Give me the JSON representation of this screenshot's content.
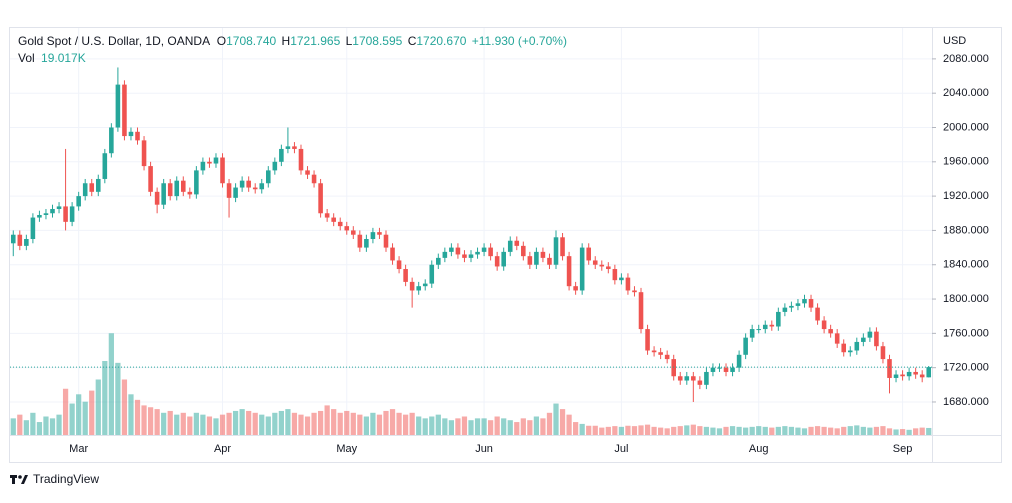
{
  "header": {
    "symbol": "Gold Spot / U.S. Dollar, 1D, OANDA",
    "ohlc": [
      {
        "label": "O",
        "value": "1708.740"
      },
      {
        "label": "H",
        "value": "1721.965"
      },
      {
        "label": "L",
        "value": "1708.595"
      },
      {
        "label": "C",
        "value": "1720.670"
      }
    ],
    "change": "+11.930 (+0.70%)",
    "volume_label": "Vol",
    "volume_value": "19.017K"
  },
  "chart_data": {
    "type": "candlestick",
    "currency": "USD",
    "categories": [
      null,
      null,
      null,
      null,
      null,
      null,
      null,
      null,
      null,
      null,
      "Mar",
      null,
      null,
      null,
      null,
      null,
      null,
      null,
      null,
      null,
      null,
      null,
      null,
      null,
      null,
      null,
      null,
      null,
      null,
      null,
      null,
      null,
      "Apr",
      null,
      null,
      null,
      null,
      null,
      null,
      null,
      null,
      null,
      null,
      null,
      null,
      null,
      null,
      null,
      null,
      null,
      null,
      "May",
      null,
      null,
      null,
      null,
      null,
      null,
      null,
      null,
      null,
      null,
      null,
      null,
      null,
      null,
      null,
      null,
      null,
      null,
      null,
      null,
      "Jun",
      null,
      null,
      null,
      null,
      null,
      null,
      null,
      null,
      null,
      null,
      null,
      null,
      null,
      null,
      null,
      null,
      null,
      null,
      null,
      null,
      "Jul",
      null,
      null,
      null,
      null,
      null,
      null,
      null,
      null,
      null,
      null,
      null,
      null,
      null,
      null,
      null,
      null,
      null,
      null,
      null,
      null,
      "Aug",
      null,
      null,
      null,
      null,
      null,
      null,
      null,
      null,
      null,
      null,
      null,
      null,
      null,
      null,
      null,
      null,
      null,
      null,
      null,
      null,
      null,
      "Sep",
      null,
      null,
      null,
      null
    ],
    "open": [
      1865,
      1875,
      1862,
      1870,
      1895,
      1898,
      1900,
      1905,
      1908,
      1890,
      1908,
      1920,
      1935,
      1925,
      1940,
      1970,
      2000,
      2050,
      1990,
      1995,
      1985,
      1955,
      1925,
      1910,
      1935,
      1920,
      1938,
      1925,
      1922,
      1950,
      1960,
      1958,
      1965,
      1935,
      1918,
      1930,
      1938,
      1930,
      1928,
      1935,
      1950,
      1960,
      1975,
      1978,
      1975,
      1950,
      1945,
      1935,
      1900,
      1895,
      1890,
      1885,
      1880,
      1875,
      1860,
      1870,
      1878,
      1875,
      1860,
      1845,
      1835,
      1820,
      1810,
      1815,
      1818,
      1840,
      1848,
      1855,
      1860,
      1852,
      1848,
      1852,
      1855,
      1860,
      1850,
      1838,
      1855,
      1868,
      1862,
      1850,
      1840,
      1855,
      1848,
      1840,
      1872,
      1850,
      1815,
      1810,
      1860,
      1845,
      1840,
      1838,
      1835,
      1822,
      1825,
      1810,
      1808,
      1765,
      1740,
      1738,
      1735,
      1730,
      1710,
      1705,
      1710,
      1705,
      1700,
      1715,
      1720,
      1720,
      1715,
      1720,
      1735,
      1755,
      1765,
      1765,
      1770,
      1768,
      1785,
      1790,
      1792,
      1795,
      1800,
      1790,
      1775,
      1765,
      1760,
      1748,
      1738,
      1740,
      1750,
      1755,
      1762,
      1745,
      1730,
      1708,
      1712,
      1710,
      1715,
      1712,
      1708.74
    ],
    "high": [
      1880,
      1880,
      1875,
      1900,
      1903,
      1905,
      1910,
      1913,
      1975,
      1913,
      1925,
      1940,
      1940,
      1945,
      1975,
      2005,
      2070,
      2055,
      2000,
      2000,
      1990,
      1960,
      1930,
      1940,
      1940,
      1943,
      1943,
      1930,
      1955,
      1965,
      1965,
      1970,
      1970,
      1940,
      1935,
      1943,
      1943,
      1935,
      1940,
      1955,
      1965,
      1980,
      2000,
      1983,
      1980,
      1955,
      1950,
      1940,
      1905,
      1900,
      1895,
      1890,
      1885,
      1880,
      1875,
      1883,
      1883,
      1880,
      1865,
      1850,
      1840,
      1825,
      1820,
      1823,
      1845,
      1853,
      1860,
      1865,
      1865,
      1857,
      1857,
      1860,
      1865,
      1865,
      1855,
      1860,
      1873,
      1873,
      1867,
      1855,
      1860,
      1860,
      1853,
      1880,
      1877,
      1855,
      1820,
      1865,
      1865,
      1850,
      1845,
      1843,
      1840,
      1830,
      1830,
      1815,
      1813,
      1770,
      1745,
      1743,
      1740,
      1735,
      1715,
      1715,
      1715,
      1710,
      1720,
      1725,
      1725,
      1725,
      1725,
      1740,
      1760,
      1770,
      1770,
      1775,
      1775,
      1790,
      1795,
      1797,
      1800,
      1805,
      1805,
      1795,
      1780,
      1770,
      1765,
      1753,
      1745,
      1755,
      1760,
      1767,
      1767,
      1750,
      1735,
      1717,
      1717,
      1720,
      1720,
      1717,
      1721.965
    ],
    "low": [
      1850,
      1857,
      1857,
      1865,
      1890,
      1893,
      1895,
      1900,
      1880,
      1885,
      1903,
      1915,
      1920,
      1920,
      1935,
      1965,
      1995,
      1985,
      1985,
      1980,
      1950,
      1920,
      1900,
      1905,
      1915,
      1915,
      1920,
      1917,
      1917,
      1945,
      1953,
      1953,
      1930,
      1895,
      1913,
      1925,
      1925,
      1923,
      1923,
      1930,
      1945,
      1955,
      1970,
      1970,
      1945,
      1940,
      1930,
      1895,
      1890,
      1885,
      1880,
      1875,
      1870,
      1855,
      1855,
      1865,
      1870,
      1855,
      1840,
      1830,
      1815,
      1790,
      1805,
      1810,
      1813,
      1835,
      1843,
      1850,
      1847,
      1843,
      1843,
      1847,
      1850,
      1845,
      1833,
      1833,
      1850,
      1857,
      1845,
      1835,
      1835,
      1843,
      1835,
      1835,
      1845,
      1810,
      1805,
      1805,
      1840,
      1835,
      1833,
      1830,
      1817,
      1817,
      1805,
      1803,
      1760,
      1735,
      1733,
      1730,
      1725,
      1705,
      1700,
      1700,
      1680,
      1695,
      1695,
      1710,
      1715,
      1710,
      1710,
      1715,
      1730,
      1750,
      1760,
      1760,
      1763,
      1763,
      1780,
      1785,
      1787,
      1790,
      1785,
      1770,
      1760,
      1755,
      1743,
      1733,
      1733,
      1735,
      1745,
      1750,
      1740,
      1725,
      1690,
      1703,
      1705,
      1705,
      1707,
      1703,
      1708.595
    ],
    "close": [
      1875,
      1862,
      1870,
      1895,
      1898,
      1900,
      1905,
      1908,
      1890,
      1908,
      1920,
      1935,
      1925,
      1940,
      1970,
      2000,
      2050,
      1990,
      1995,
      1985,
      1955,
      1925,
      1910,
      1935,
      1920,
      1938,
      1925,
      1922,
      1950,
      1960,
      1958,
      1965,
      1935,
      1918,
      1930,
      1938,
      1930,
      1928,
      1935,
      1950,
      1960,
      1975,
      1978,
      1975,
      1950,
      1945,
      1935,
      1900,
      1895,
      1890,
      1885,
      1880,
      1875,
      1860,
      1870,
      1878,
      1875,
      1860,
      1845,
      1835,
      1820,
      1810,
      1815,
      1818,
      1840,
      1848,
      1855,
      1860,
      1852,
      1848,
      1852,
      1855,
      1860,
      1850,
      1838,
      1855,
      1868,
      1862,
      1850,
      1840,
      1855,
      1848,
      1840,
      1872,
      1850,
      1815,
      1810,
      1860,
      1845,
      1840,
      1838,
      1835,
      1822,
      1825,
      1810,
      1808,
      1765,
      1740,
      1738,
      1735,
      1730,
      1710,
      1705,
      1710,
      1705,
      1700,
      1715,
      1720,
      1720,
      1715,
      1720,
      1735,
      1755,
      1765,
      1765,
      1770,
      1768,
      1785,
      1790,
      1792,
      1795,
      1800,
      1790,
      1775,
      1765,
      1760,
      1748,
      1738,
      1740,
      1750,
      1755,
      1762,
      1745,
      1730,
      1708,
      1712,
      1710,
      1715,
      1712,
      1708.74,
      1720.67
    ],
    "volume": [
      45,
      55,
      40,
      60,
      35,
      50,
      45,
      55,
      125,
      85,
      110,
      90,
      120,
      150,
      200,
      275,
      195,
      150,
      110,
      95,
      80,
      75,
      70,
      60,
      65,
      55,
      60,
      50,
      60,
      55,
      50,
      45,
      55,
      60,
      65,
      70,
      65,
      60,
      55,
      50,
      60,
      65,
      70,
      60,
      55,
      50,
      60,
      65,
      80,
      70,
      60,
      65,
      60,
      55,
      50,
      60,
      55,
      65,
      70,
      60,
      55,
      60,
      50,
      45,
      50,
      55,
      45,
      40,
      45,
      50,
      40,
      45,
      45,
      40,
      50,
      45,
      40,
      35,
      45,
      40,
      50,
      45,
      60,
      85,
      70,
      55,
      35,
      30,
      25,
      25,
      20,
      22,
      24,
      22,
      25,
      24,
      26,
      28,
      22,
      20,
      18,
      22,
      24,
      26,
      28,
      24,
      22,
      20,
      18,
      22,
      24,
      22,
      20,
      22,
      24,
      22,
      20,
      22,
      24,
      22,
      20,
      18,
      22,
      24,
      22,
      20,
      18,
      22,
      24,
      26,
      22,
      20,
      22,
      24,
      18,
      15,
      16,
      14,
      18,
      20,
      19.017
    ],
    "up_color": "#26a69a",
    "down_color": "#ef5350",
    "ylim": [
      1641.5,
      2116
    ],
    "yticks": [
      {
        "value": 1680,
        "label": "1680.000"
      },
      {
        "value": 1720,
        "label": "1720.000"
      },
      {
        "value": 1760,
        "label": "1760.000"
      },
      {
        "value": 1800,
        "label": "1800.000"
      },
      {
        "value": 1840,
        "label": "1840.000"
      },
      {
        "value": 1880,
        "label": "1880.000"
      },
      {
        "value": 1920,
        "label": "1920.000"
      },
      {
        "value": 1960,
        "label": "1960.000"
      },
      {
        "value": 2000,
        "label": "2000.000"
      },
      {
        "value": 2040,
        "label": "2040.000"
      },
      {
        "value": 2080,
        "label": "2080.000"
      }
    ],
    "grid": true
  },
  "footer": {
    "brand": "TradingView"
  }
}
